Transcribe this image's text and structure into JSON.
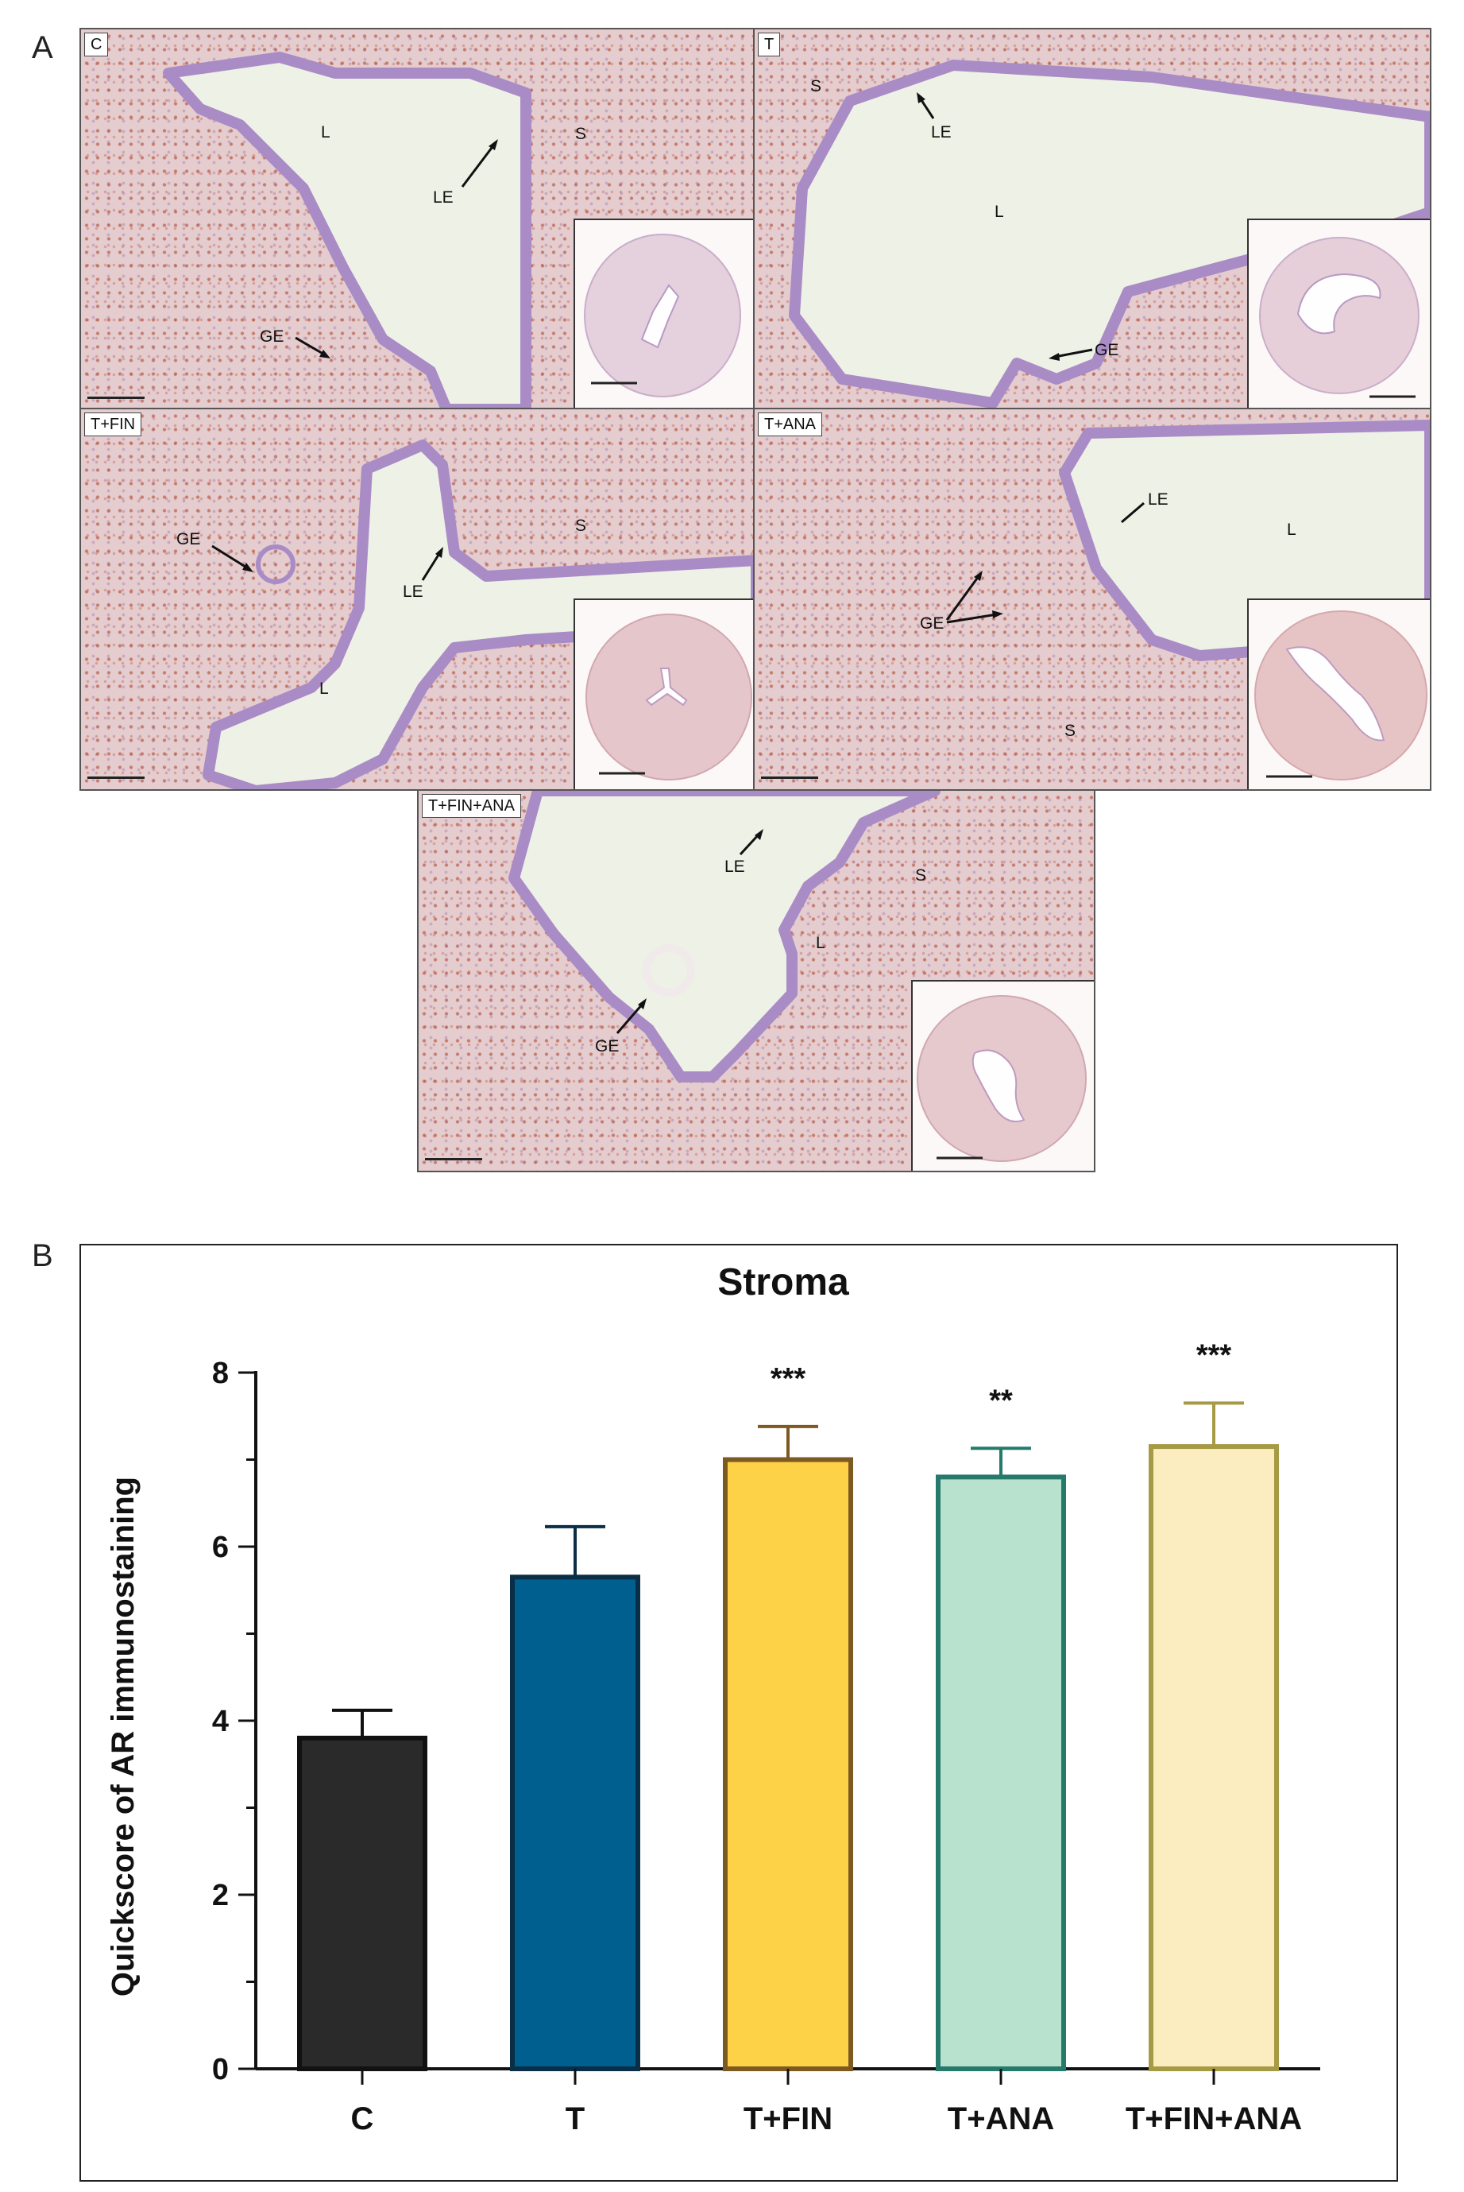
{
  "figure": {
    "panel_a_letter": "A",
    "panel_b_letter": "B",
    "micrographs": [
      {
        "group": "C",
        "labels": {
          "L": "L",
          "LE": "LE",
          "S": "S",
          "GE": "GE"
        }
      },
      {
        "group": "T",
        "labels": {
          "S": "S",
          "LE": "LE",
          "L": "L",
          "GE": "GE"
        }
      },
      {
        "group": "T+FIN",
        "labels": {
          "GE": "GE",
          "LE": "LE",
          "S": "S",
          "L": "L"
        }
      },
      {
        "group": "T+ANA",
        "labels": {
          "LE": "LE",
          "L": "L",
          "GE": "GE",
          "S": "S"
        }
      },
      {
        "group": "T+FIN+ANA",
        "labels": {
          "LE": "LE",
          "S": "S",
          "L": "L",
          "GE": "GE"
        }
      }
    ]
  },
  "colors": {
    "C": "#2a2a2a",
    "T": "#005f8f",
    "T+FIN": "#fdd247",
    "T+ANA": "#b8e2cd",
    "T+FIN+ANA": "#fbedc0",
    "T+FIN_edge": "#7d5a21",
    "T+ANA_edge": "#267a6c",
    "T+FIN+ANA_edge": "#a79a45",
    "C_edge": "#111111",
    "T_edge": "#0a2e45"
  },
  "chart_data": {
    "type": "bar",
    "title": "Stroma",
    "xlabel": "",
    "ylabel": "Quickscore of AR immunostaining",
    "categories": [
      "C",
      "T",
      "T+FIN",
      "T+ANA",
      "T+FIN+ANA"
    ],
    "values": [
      3.8,
      5.65,
      7.0,
      6.8,
      7.15
    ],
    "error": [
      0.32,
      0.58,
      0.38,
      0.33,
      0.5
    ],
    "significance": [
      "",
      "",
      "***",
      "**",
      "***"
    ],
    "ylim": [
      0,
      8
    ],
    "yticks": [
      "0",
      "2",
      "4",
      "6",
      "8"
    ],
    "grid": false
  }
}
